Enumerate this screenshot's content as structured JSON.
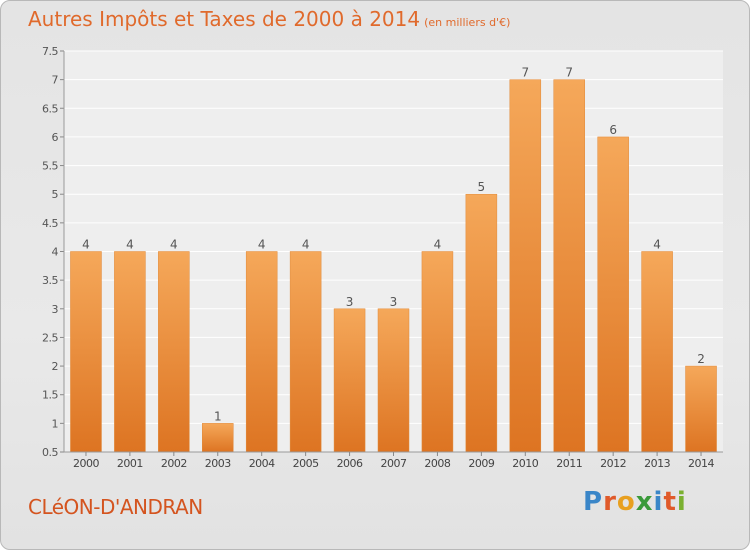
{
  "title": "Autres Impôts et Taxes de 2000 à 2014",
  "subtitle": "(en milliers d'€)",
  "commune": "CLéON-D'ANDRAN",
  "logo": {
    "letters": [
      "P",
      "r",
      "o",
      "x",
      "i",
      "t",
      "i"
    ],
    "colors": [
      "#3a86c8",
      "#e05a2a",
      "#e8a020",
      "#3a9a3a",
      "#3a86c8",
      "#e05a2a",
      "#7ab030"
    ]
  },
  "colors": {
    "bar_top": "#f5a85a",
    "bar_bottom": "#dd7422",
    "label": "#555555",
    "accent": "#e06a2c"
  },
  "chart_data": {
    "type": "bar",
    "categories": [
      "2000",
      "2001",
      "2002",
      "2003",
      "2004",
      "2005",
      "2006",
      "2007",
      "2008",
      "2009",
      "2010",
      "2011",
      "2012",
      "2013",
      "2014"
    ],
    "values": [
      4,
      4,
      4,
      1,
      4,
      4,
      3,
      3,
      4,
      5,
      7,
      7,
      6,
      4,
      2
    ],
    "data_labels": [
      "4",
      "4",
      "4",
      "1",
      "4",
      "4",
      "3",
      "3",
      "4",
      "5",
      "7",
      "7",
      "6",
      "4",
      "2"
    ],
    "ylim": [
      0.5,
      7.5
    ],
    "yticks": [
      "0.5",
      "1",
      "1.5",
      "2",
      "2.5",
      "3",
      "3.5",
      "4",
      "4.5",
      "5",
      "5.5",
      "6",
      "6.5",
      "7",
      "7.5"
    ],
    "grid": true
  }
}
